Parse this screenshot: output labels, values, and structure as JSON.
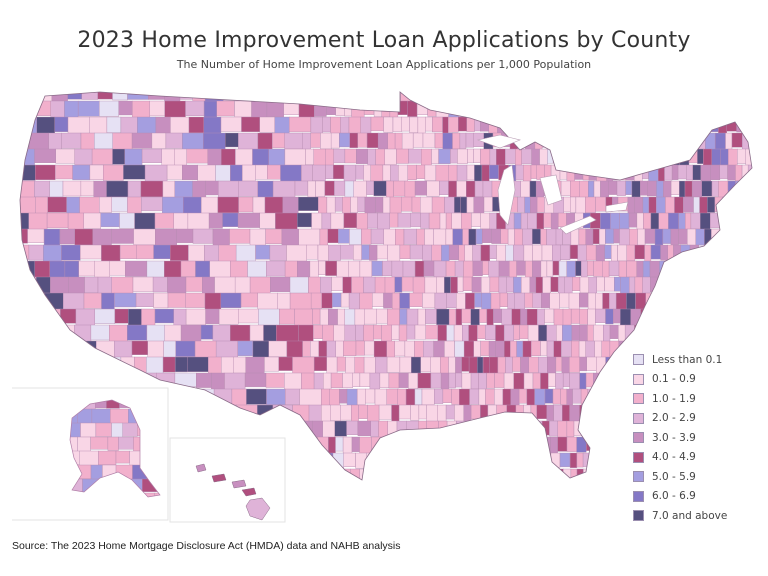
{
  "map": {
    "title": "2023 Home Improvement Loan Applications by County",
    "subtitle": "The Number of Home Improvement Loan Applications per 1,000 Population",
    "legend": [
      {
        "label": "Less than 0.1",
        "color": "#e6e1f4"
      },
      {
        "label": "0.1 - 0.9",
        "color": "#f9d6e6"
      },
      {
        "label": "1.0 - 1.9",
        "color": "#f2b0cc"
      },
      {
        "label": "2.0 - 2.9",
        "color": "#dfb3d8"
      },
      {
        "label": "3.0 - 3.9",
        "color": "#c78fbf"
      },
      {
        "label": "4.0 - 4.9",
        "color": "#b04f7e"
      },
      {
        "label": "5.0 - 5.9",
        "color": "#a49ee0"
      },
      {
        "label": "6.0 - 6.9",
        "color": "#8478c6"
      },
      {
        "label": "7.0 and above",
        "color": "#55507f"
      }
    ],
    "source": "Source: The 2023 Home Mortgage Disclosure Act (HMDA) data and NAHB analysis"
  }
}
